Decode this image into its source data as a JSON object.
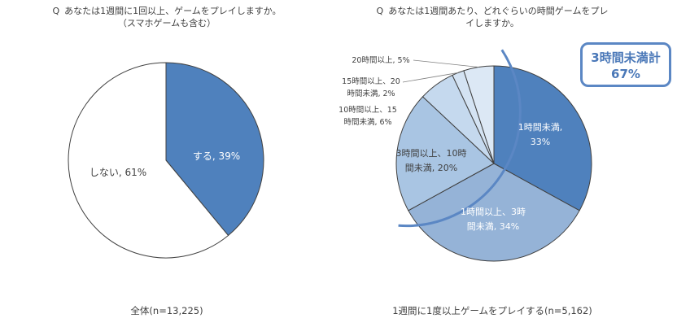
{
  "left": {
    "question_mark": "Q",
    "question_line1": "あなたは1週間に1回以上、ゲームをプレイしますか。",
    "question_line2": "（スマホゲームも含む）",
    "base_label": "全体(n=13,225)"
  },
  "right": {
    "question_mark": "Q",
    "question_line1": "あなたは1週間あたり、どれぐらいの時間ゲームをプレ",
    "question_line2": "イしますか。",
    "base_label": "1週間に1度以上ゲームをプレイする(n=5,162)",
    "callout_line1": "3時間未満計",
    "callout_line2": "67%"
  },
  "chart_data": [
    {
      "type": "pie",
      "title": "",
      "slices": [
        {
          "label": "する, 39%",
          "value": 39,
          "color": "#4f81bd"
        },
        {
          "label": "しない, 61%",
          "value": 61,
          "color": "#ffffff"
        }
      ]
    },
    {
      "type": "pie",
      "title": "",
      "slices": [
        {
          "label": [
            "1時間未満,",
            "33%"
          ],
          "value": 33,
          "color": "#4f81bd"
        },
        {
          "label": [
            "1時間以上、3時",
            "間未満, 34%"
          ],
          "value": 34,
          "color": "#95b3d7"
        },
        {
          "label": [
            "3時間以上、10時",
            "間未満, 20%"
          ],
          "value": 20,
          "color": "#a9c5e3"
        },
        {
          "label": [
            "10時間以上、15",
            "時間未満, 6%"
          ],
          "value": 6,
          "color": "#c5d9ee"
        },
        {
          "label": [
            "15時間以上、20",
            "時間未満, 2%"
          ],
          "value": 2,
          "color": "#d4e3f3"
        },
        {
          "label": [
            "20時間以上, 5%"
          ],
          "value": 5,
          "color": "#dce8f5"
        }
      ]
    }
  ]
}
